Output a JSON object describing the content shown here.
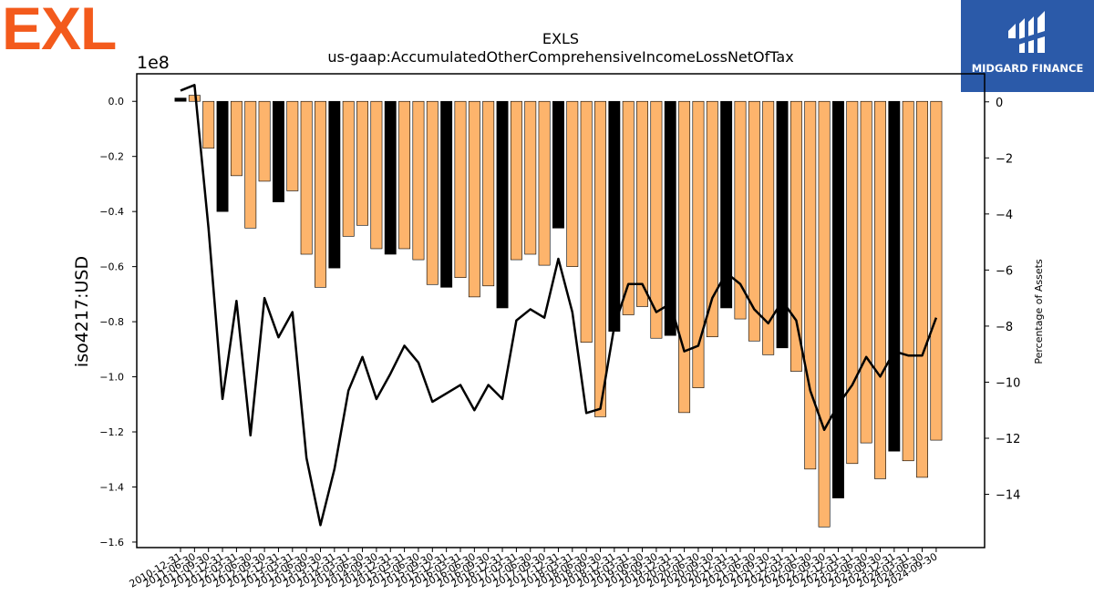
{
  "brand": {
    "logo_text": "EXL",
    "logo_color": "#f35a1c"
  },
  "sponsor": {
    "name": "MIDGARD FINANCE",
    "bg_color": "#2b5aa9"
  },
  "colors": {
    "bar_default": "#fdb46c",
    "bar_highlight": "#000000",
    "line": "#000000"
  },
  "chart_data": {
    "type": "bar",
    "title": "EXLS",
    "subtitle": "us-gaap:AccumulatedOtherComprehensiveIncomeLossNetOfTax",
    "ylabel": "iso4217:USD",
    "y_offset_label": "1e8",
    "y2label": "Percentage of Assets",
    "ylim": [
      -1.62,
      0.1
    ],
    "yticks": [
      0.0,
      -0.2,
      -0.4,
      -0.6,
      -0.8,
      -1.0,
      -1.2,
      -1.4,
      -1.6
    ],
    "ytick_labels": [
      "0.0",
      "−0.2",
      "−0.4",
      "−0.6",
      "−0.8",
      "−1.0",
      "−1.2",
      "−1.4",
      "−1.6"
    ],
    "y2lim": [
      -15.9,
      1.0
    ],
    "y2ticks": [
      0,
      -2,
      -4,
      -6,
      -8,
      -10,
      -12,
      -14
    ],
    "y2tick_labels": [
      "0",
      "−2",
      "−4",
      "−6",
      "−8",
      "−10",
      "−12",
      "−14"
    ],
    "categories": [
      "2010-12-31",
      "2011-06-30",
      "2011-09-30",
      "2011-12-31",
      "2012-03-31",
      "2012-06-30",
      "2012-09-30",
      "2012-12-31",
      "2013-03-31",
      "2013-06-30",
      "2013-09-30",
      "2013-12-31",
      "2014-03-31",
      "2014-06-30",
      "2014-09-30",
      "2014-12-31",
      "2015-03-31",
      "2015-06-30",
      "2015-09-30",
      "2015-12-31",
      "2016-03-31",
      "2016-06-30",
      "2016-09-30",
      "2016-12-31",
      "2017-03-31",
      "2017-06-30",
      "2017-09-30",
      "2017-12-31",
      "2018-03-31",
      "2018-06-30",
      "2018-09-30",
      "2018-12-31",
      "2019-03-31",
      "2019-06-30",
      "2019-09-30",
      "2019-12-31",
      "2020-03-31",
      "2020-06-30",
      "2020-09-30",
      "2020-12-31",
      "2021-03-31",
      "2021-06-30",
      "2021-09-30",
      "2021-12-31",
      "2022-03-31",
      "2022-06-30",
      "2022-09-30",
      "2022-12-31",
      "2023-03-31",
      "2023-06-30",
      "2023-09-30",
      "2023-12-31",
      "2024-03-31",
      "2024-06-30",
      "2024-09-30"
    ],
    "xtick_labels": [
      "2010-12-31",
      "2011-06-30",
      "2011-09-30",
      "2011-12-31",
      "2012-03-31",
      "2012-06-30",
      "2012-09-30",
      "2012-12-31",
      "2013-03-31",
      "2013-06-30",
      "2013-09-30",
      "2013-12-31",
      "2014-03-31",
      "2014-06-30",
      "2014-09-30",
      "2014-12-31",
      "2015-03-31",
      "2015-06-30",
      "2015-09-30",
      "2015-12-31",
      "2016-03-31",
      "2016-06-30",
      "2016-09-30",
      "2016-12-31",
      "2017-03-31",
      "2017-06-30",
      "2017-09-30",
      "2017-12-31",
      "2018-03-31",
      "2018-06-30",
      "2018-09-30",
      "2018-12-31",
      "2019-03-31",
      "2019-06-30",
      "2019-09-30",
      "2019-12-31",
      "2020-03-31",
      "2020-06-30",
      "2020-09-30",
      "2020-12-31",
      "2021-03-31",
      "2021-06-30",
      "2021-09-30",
      "2021-12-31",
      "2022-03-31",
      "2022-06-30",
      "2022-09-30",
      "2022-12-31",
      "2023-03-31",
      "2023-06-30",
      "2023-09-30",
      "2023-12-31",
      "2024-03-31",
      "2024-06-30",
      "2024-09-30"
    ],
    "series": [
      {
        "type": "bar",
        "axis": "left",
        "values": [
          0.012,
          0.022,
          -0.17,
          -0.4,
          -0.27,
          -0.46,
          -0.29,
          -0.365,
          -0.325,
          -0.555,
          -0.675,
          -0.605,
          -0.49,
          -0.45,
          -0.535,
          -0.555,
          -0.535,
          -0.575,
          -0.665,
          -0.675,
          -0.64,
          -0.71,
          -0.67,
          -0.75,
          -0.575,
          -0.555,
          -0.595,
          -0.46,
          -0.6,
          -0.875,
          -1.145,
          -0.835,
          -0.775,
          -0.745,
          -0.86,
          -0.85,
          -1.13,
          -1.04,
          -0.855,
          -0.75,
          -0.79,
          -0.87,
          -0.92,
          -0.895,
          -0.98,
          -1.335,
          -1.545,
          -1.44,
          -1.315,
          -1.24,
          -1.37,
          -1.27,
          -1.305,
          -1.365,
          -1.23
        ],
        "highlight": [
          true,
          false,
          false,
          true,
          false,
          false,
          false,
          true,
          false,
          false,
          false,
          true,
          false,
          false,
          false,
          true,
          false,
          false,
          false,
          true,
          false,
          false,
          false,
          true,
          false,
          false,
          false,
          true,
          false,
          false,
          false,
          true,
          false,
          false,
          false,
          true,
          false,
          false,
          false,
          true,
          false,
          false,
          false,
          true,
          false,
          false,
          false,
          true,
          false,
          false,
          false,
          true,
          false,
          false,
          false
        ]
      },
      {
        "type": "line",
        "axis": "right",
        "values": [
          0.4,
          0.6,
          -4.5,
          -10.6,
          -7.1,
          -11.9,
          -7.0,
          -8.4,
          -7.5,
          -12.7,
          -15.1,
          -13.1,
          -10.3,
          -9.1,
          -10.6,
          -9.7,
          -8.7,
          -9.3,
          -10.7,
          -10.4,
          -10.1,
          -11.0,
          -10.1,
          -10.6,
          -7.8,
          -7.4,
          -7.7,
          -5.6,
          -7.5,
          -11.1,
          -10.95,
          -8.0,
          -6.5,
          -6.5,
          -7.5,
          -7.2,
          -8.9,
          -8.7,
          -7.0,
          -6.1,
          -6.5,
          -7.4,
          -7.9,
          -7.1,
          -7.8,
          -10.3,
          -11.7,
          -10.8,
          -10.1,
          -9.1,
          -9.8,
          -8.9,
          -9.05,
          -9.05,
          -7.7
        ]
      }
    ]
  }
}
